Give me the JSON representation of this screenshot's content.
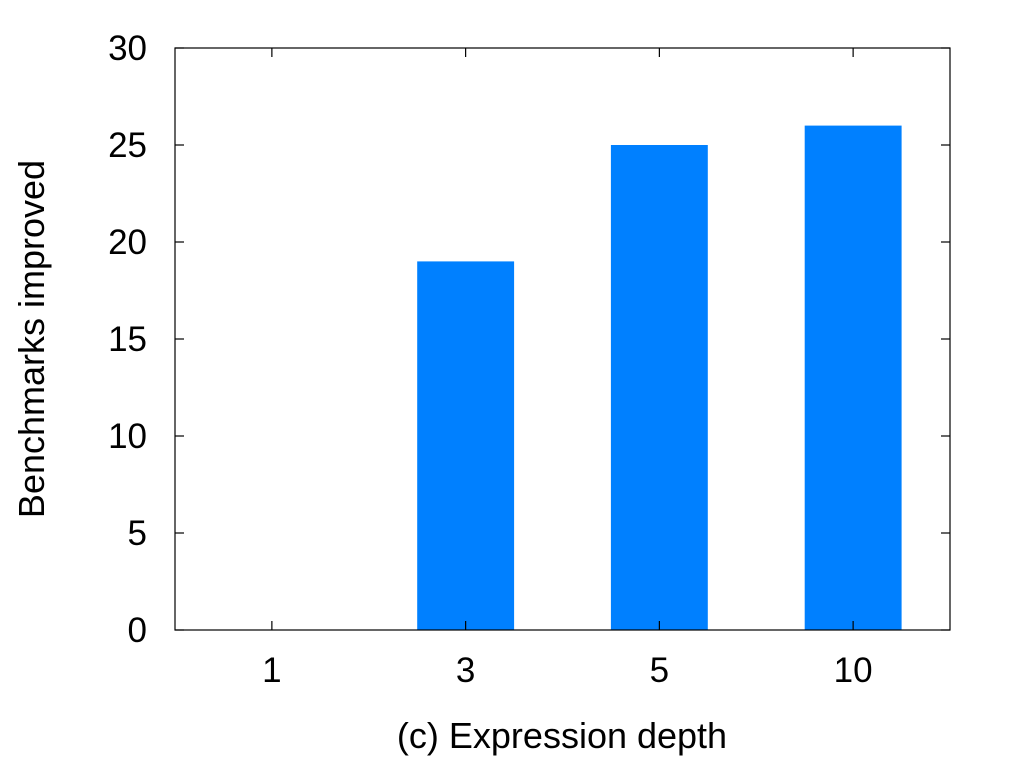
{
  "chart_data": {
    "type": "bar",
    "categories": [
      "1",
      "3",
      "5",
      "10"
    ],
    "values": [
      0,
      19,
      25,
      26
    ],
    "xlabel": "(c) Expression depth",
    "ylabel": "Benchmarks improved",
    "ylim": [
      0,
      30
    ],
    "yticks": [
      0,
      5,
      10,
      15,
      20,
      25,
      30
    ],
    "grid": false,
    "bar_color": "#0080ff"
  }
}
